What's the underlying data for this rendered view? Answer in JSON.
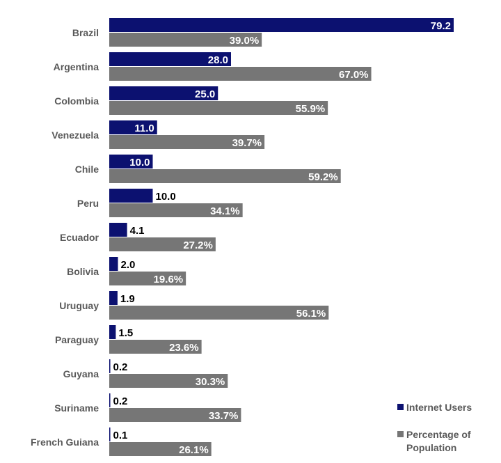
{
  "chart_data": {
    "type": "bar",
    "orientation": "horizontal",
    "title": "",
    "categories": [
      "Brazil",
      "Argentina",
      "Colombia",
      "Venezuela",
      "Chile",
      "Peru",
      "Ecuador",
      "Bolivia",
      "Uruguay",
      "Paraguay",
      "Guyana",
      "Suriname",
      "French Guiana"
    ],
    "series": [
      {
        "name": "Internet Users",
        "color": "#0c1170",
        "values": [
          79.2,
          28.0,
          25.0,
          11.0,
          10.0,
          10.0,
          4.1,
          2.0,
          1.9,
          1.5,
          0.2,
          0.2,
          0.1
        ],
        "labels": [
          "79.2",
          "28.0",
          "25.0",
          "11.0",
          "10.0",
          "10.0",
          "4.1",
          "2.0",
          "1.9",
          "1.5",
          "0.2",
          "0.2",
          "0.1"
        ]
      },
      {
        "name": "Percentage of Population",
        "color": "#767676",
        "values": [
          39.0,
          67.0,
          55.9,
          39.7,
          59.2,
          34.1,
          27.2,
          19.6,
          56.1,
          23.6,
          30.3,
          33.7,
          26.1
        ],
        "labels": [
          "39.0%",
          "67.0%",
          "55.9%",
          "39.7%",
          "59.2%",
          "34.1%",
          "27.2%",
          "19.6%",
          "56.1%",
          "23.6%",
          "30.3%",
          "33.7%",
          "26.1%"
        ]
      }
    ],
    "legend": {
      "placement": "bottom-right",
      "entries": [
        "Internet Users",
        [
          "Percentage of",
          "Population"
        ]
      ]
    },
    "grid": false,
    "axes_visible": false
  }
}
